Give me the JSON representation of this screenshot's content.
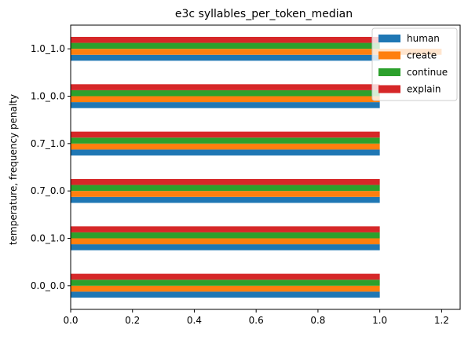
{
  "chart_data": {
    "type": "bar",
    "orientation": "horizontal",
    "title": "e3c syllables_per_token_median",
    "xlabel": "",
    "ylabel": "temperature, frequency penalty",
    "categories": [
      "0.0_0.0",
      "0.0_1.0",
      "0.7_0.0",
      "0.7_1.0",
      "1.0_0.0",
      "1.0_1.0"
    ],
    "series": [
      {
        "name": "human",
        "color": "#1f77b4",
        "values": [
          1.0,
          1.0,
          1.0,
          1.0,
          1.0,
          1.0
        ]
      },
      {
        "name": "create",
        "color": "#ff7f0e",
        "values": [
          1.0,
          1.0,
          1.0,
          1.0,
          1.0,
          1.2
        ]
      },
      {
        "name": "continue",
        "color": "#2ca02c",
        "values": [
          1.0,
          1.0,
          1.0,
          1.0,
          1.0,
          1.0
        ]
      },
      {
        "name": "explain",
        "color": "#d62728",
        "values": [
          1.0,
          1.0,
          1.0,
          1.0,
          1.0,
          1.0
        ]
      }
    ],
    "xlim": [
      0,
      1.26
    ],
    "xticks": [
      0.0,
      0.2,
      0.4,
      0.6,
      0.8,
      1.0,
      1.2
    ],
    "xtick_labels": [
      "0.0",
      "0.2",
      "0.4",
      "0.6",
      "0.8",
      "1.0",
      "1.2"
    ],
    "grid": false,
    "legend_position": "top-right"
  }
}
